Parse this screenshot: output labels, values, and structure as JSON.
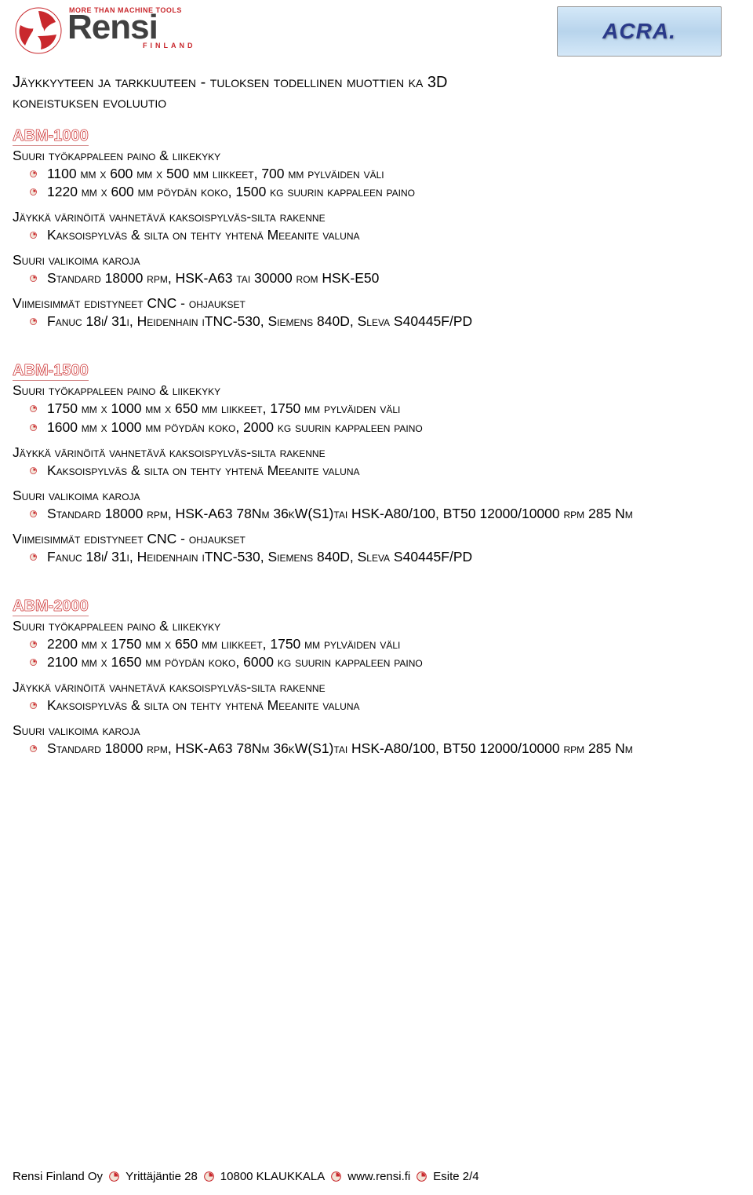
{
  "header": {
    "tagline": "MORE THAN MACHINE TOOLS",
    "brand": "Rensi",
    "country": "FINLAND",
    "partner": "ACRA."
  },
  "main_title_line1": "Jäykkyyteen ja tarkkuuteen - tuloksen todellinen muottien ka 3D",
  "main_title_line2": "koneistuksen evoluutio",
  "sections": [
    {
      "name": "ABM-1000",
      "groups": [
        {
          "heading": "Suuri työkappaleen paino & liikekyky",
          "items": [
            "1100 mm x 600 mm x 500 mm liikkeet, 700 mm pylväiden väli",
            "1220 mm x 600 mm pöydän koko, 1500 kg suurin kappaleen paino"
          ]
        },
        {
          "heading": "Jäykkä värinöitä vahnetävä kaksoispylväs-silta rakenne",
          "items": [
            "Kaksoispylväs & silta on tehty yhtenä Meeanite valuna"
          ]
        },
        {
          "heading": "Suuri valikoima karoja",
          "items": [
            "Standard 18000 rpm, HSK-A63 tai 30000 rom HSK-E50"
          ]
        },
        {
          "heading": "Viimeisimmät edistyneet CNC - ohjaukset",
          "items": [
            "Fanuc 18i/ 31i, Heidenhain iTNC-530, Siemens 840D, Sleva S40445F/PD"
          ]
        }
      ]
    },
    {
      "name": "ABM-1500",
      "groups": [
        {
          "heading": "Suuri työkappaleen paino & liikekyky",
          "items": [
            "1750 mm x 1000 mm x 650 mm liikkeet, 1750 mm pylväiden väli",
            "1600 mm x 1000 mm pöydän koko, 2000 kg suurin kappaleen paino"
          ]
        },
        {
          "heading": "Jäykkä värinöitä vahnetävä kaksoispylväs-silta rakenne",
          "items": [
            "Kaksoispylväs & silta on tehty yhtenä Meeanite valuna"
          ]
        },
        {
          "heading": "Suuri valikoima karoja",
          "items": [
            "Standard 18000 rpm, HSK-A63 78Nm 36kW(S1)tai HSK-A80/100, BT50 12000/10000 rpm 285 Nm"
          ]
        },
        {
          "heading": "Viimeisimmät edistyneet CNC - ohjaukset",
          "items": [
            "Fanuc 18i/ 31i, Heidenhain iTNC-530, Siemens 840D, Sleva S40445F/PD"
          ]
        }
      ]
    },
    {
      "name": "ABM-2000",
      "groups": [
        {
          "heading": "Suuri työkappaleen paino & liikekyky",
          "items": [
            "2200 mm x 1750 mm x 650 mm liikkeet, 1750 mm pylväiden väli",
            "2100 mm x 1650 mm pöydän koko, 6000 kg suurin kappaleen paino"
          ]
        },
        {
          "heading": "Jäykkä värinöitä vahnetävä kaksoispylväs-silta rakenne",
          "items": [
            "Kaksoispylväs & silta on tehty yhtenä Meeanite valuna"
          ]
        },
        {
          "heading": "Suuri valikoima karoja",
          "items": [
            "Standard 18000 rpm, HSK-A63 78Nm 36kW(S1)tai HSK-A80/100, BT50 12000/10000 rpm 285 Nm"
          ]
        }
      ]
    }
  ],
  "footer": {
    "company": "Rensi Finland Oy",
    "address": "Yrittäjäntie 28",
    "postal": "10800  KLAUKKALA",
    "web": "www.rensi.fi",
    "page": "Esite 2/4"
  },
  "colors": {
    "brand_red": "#c9282d",
    "brand_gray": "#404040",
    "section_red": "#c00000",
    "acra_blue": "#2a3a8a",
    "acra_bg1": "#d4e8f8",
    "acra_bg2": "#b8d4ec"
  }
}
